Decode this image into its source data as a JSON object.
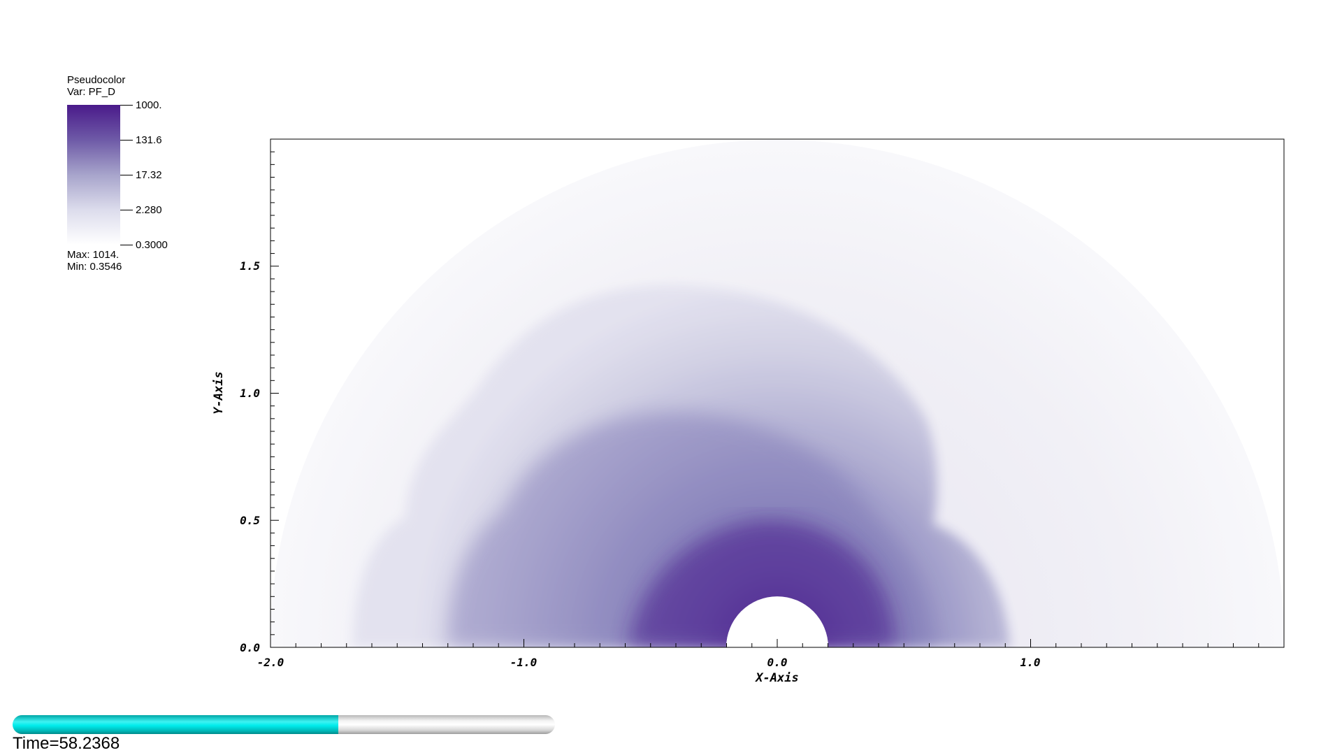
{
  "legend": {
    "title": "Pseudocolor",
    "var_label": "Var: PF_D",
    "ticks": [
      "1000.",
      "131.6",
      "17.32",
      "2.280",
      "0.3000"
    ],
    "max_label": "Max:  1014.",
    "min_label": "Min:  0.3546",
    "colors": [
      "#4a1a8a",
      "#6e5aa7",
      "#a7a4cb",
      "#dcdcec",
      "#ffffff"
    ]
  },
  "chart_data": {
    "type": "heatmap",
    "variable": "PF_D",
    "scale": "log",
    "colorbar_range": [
      0.3,
      1000
    ],
    "data_max": 1014,
    "data_min": 0.3546,
    "xlabel": "X-Axis",
    "ylabel": "Y-Axis",
    "xlim": [
      -2.0,
      2.0
    ],
    "ylim": [
      0.0,
      2.0
    ],
    "x_ticks": [
      "-2.0",
      "-1.0",
      "0.0",
      "1.0"
    ],
    "y_ticks": [
      "0.0",
      "0.5",
      "1.0",
      "1.5"
    ],
    "domain": {
      "outer_radius": 2.0,
      "inner_radius": 0.2,
      "shape": "half-annulus"
    }
  },
  "time": {
    "label": "Time=58.2368",
    "progress": 0.6
  }
}
